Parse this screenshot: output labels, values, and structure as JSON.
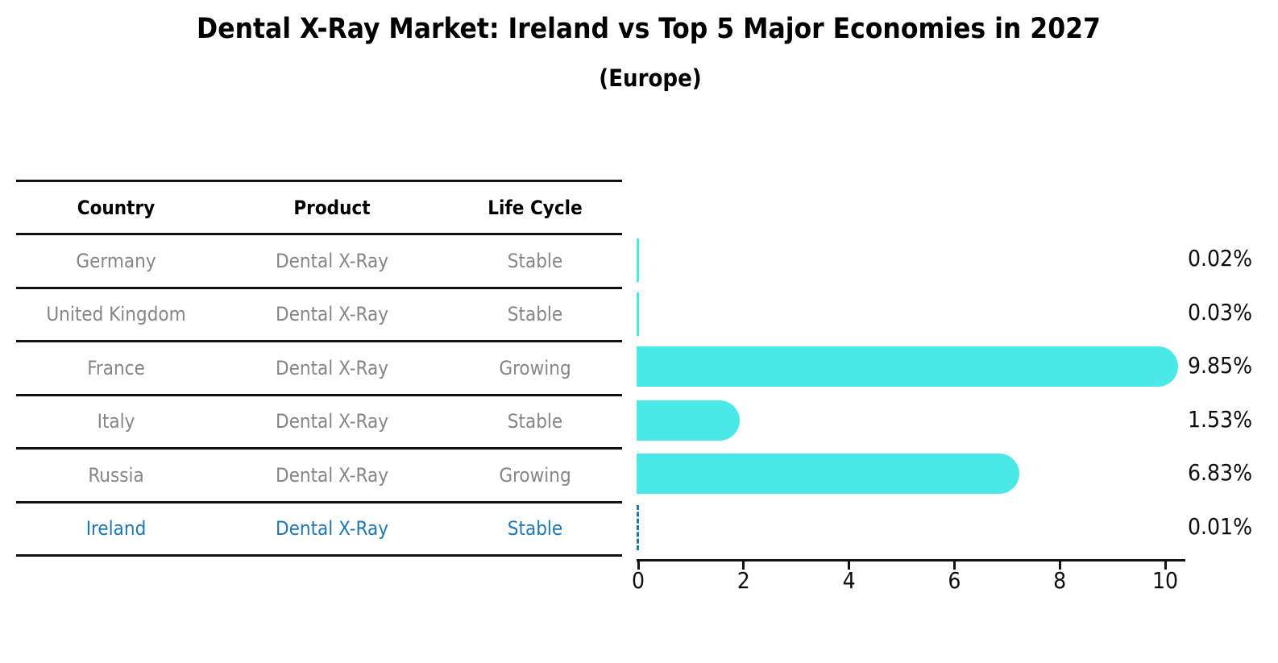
{
  "title": "Dental X-Ray Market: Ireland vs Top 5 Major Economies in 2027",
  "subtitle": "(Europe)",
  "table": {
    "headers": [
      "Country",
      "Product",
      "Life Cycle"
    ]
  },
  "chart_data": {
    "type": "bar",
    "orientation": "horizontal",
    "title": "Dental X-Ray Market: Ireland vs Top 5 Major Economies in 2027",
    "subtitle": "(Europe)",
    "categories": [
      "Germany",
      "United Kingdom",
      "France",
      "Italy",
      "Russia",
      "Ireland"
    ],
    "values": [
      0.02,
      0.03,
      9.85,
      1.53,
      6.83,
      0.01
    ],
    "value_labels": [
      "0.02%",
      "0.03%",
      "9.85%",
      "1.53%",
      "6.83%",
      "0.01%"
    ],
    "rows": [
      {
        "country": "Germany",
        "product": "Dental X-Ray",
        "life_cycle": "Stable",
        "value": 0.02,
        "label": "0.02%",
        "highlight": false
      },
      {
        "country": "United Kingdom",
        "product": "Dental X-Ray",
        "life_cycle": "Stable",
        "value": 0.03,
        "label": "0.03%",
        "highlight": false
      },
      {
        "country": "France",
        "product": "Dental X-Ray",
        "life_cycle": "Growing",
        "value": 9.85,
        "label": "9.85%",
        "highlight": false
      },
      {
        "country": "Italy",
        "product": "Dental X-Ray",
        "life_cycle": "Stable",
        "value": 1.53,
        "label": "1.53%",
        "highlight": false
      },
      {
        "country": "Russia",
        "product": "Dental X-Ray",
        "life_cycle": "Growing",
        "value": 6.83,
        "label": "6.83%",
        "highlight": false
      },
      {
        "country": "Ireland",
        "product": "Dental X-Ray",
        "life_cycle": "Stable",
        "value": 0.01,
        "label": "0.01%",
        "highlight": true
      }
    ],
    "x_ticks": [
      0,
      2,
      4,
      6,
      8,
      10
    ],
    "xlim": [
      0,
      10.4
    ],
    "grid": false,
    "legend": false,
    "bar_color": "#4BE8E8",
    "highlight_text_color": "#1F77B4",
    "muted_text_color": "#868686",
    "axis_color": "#111111"
  }
}
